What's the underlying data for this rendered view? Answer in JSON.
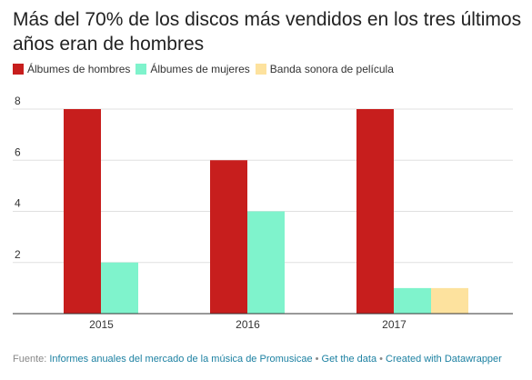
{
  "title": "Más del 70% de los discos más vendidos en los tres últimos años eran de hombres",
  "footer": {
    "prefix": "Fuente: ",
    "source_link": "Informes anuales del mercado de la música de Promusicae",
    "separator": " • ",
    "data_link": "Get the data",
    "credit_link": "Created with Datawrapper"
  },
  "chart_data": {
    "type": "bar",
    "title": "Más del 70% de los discos más vendidos en los tres últimos años eran de hombres",
    "xlabel": "",
    "ylabel": "",
    "categories": [
      "2015",
      "2016",
      "2017"
    ],
    "series": [
      {
        "name": "Álbumes de hombres",
        "color": "#c71e1d",
        "values": [
          8,
          6,
          8
        ]
      },
      {
        "name": "Álbumes de mujeres",
        "color": "#7ff3cc",
        "values": [
          2,
          4,
          1
        ]
      },
      {
        "name": "Banda sonora de película",
        "color": "#fde29e",
        "values": [
          0,
          0,
          1
        ]
      }
    ],
    "ylim": [
      0,
      8
    ],
    "yticks": [
      "2",
      "4",
      "6",
      "8"
    ],
    "grid": true,
    "legend_position": "top-left"
  }
}
